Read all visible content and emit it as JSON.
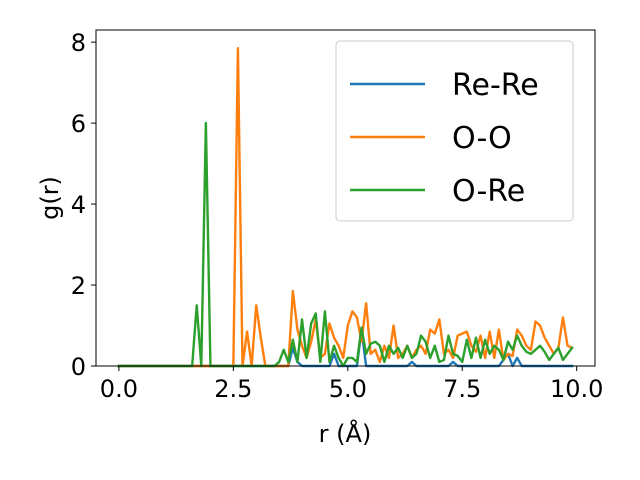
{
  "chart_data": {
    "type": "line",
    "title": "",
    "xlabel": "r (Å)",
    "ylabel": "g(r)",
    "xlim": [
      -0.5,
      10.4
    ],
    "ylim": [
      0,
      8.3
    ],
    "xticks": [
      0.0,
      2.5,
      5.0,
      7.5,
      10.0
    ],
    "xtick_labels": [
      "0.0",
      "2.5",
      "5.0",
      "7.5",
      "10.0"
    ],
    "yticks": [
      0,
      2,
      4,
      6,
      8
    ],
    "ytick_labels": [
      "0",
      "2",
      "4",
      "6",
      "8"
    ],
    "grid": false,
    "legend_position": "upper right",
    "series": [
      {
        "name": "Re-Re",
        "color": "#1f77b4",
        "x": [
          0.0,
          3.7,
          3.8,
          3.9,
          4.0,
          4.6,
          4.7,
          4.8,
          5.2,
          5.3,
          5.4,
          6.3,
          6.4,
          6.5,
          7.2,
          7.3,
          7.4,
          8.3,
          8.4,
          8.5,
          8.6,
          8.7,
          8.8,
          9.9
        ],
        "y": [
          0.0,
          0.0,
          0.45,
          0.1,
          0.0,
          0.0,
          0.3,
          0.0,
          0.0,
          0.9,
          0.0,
          0.0,
          0.1,
          0.0,
          0.0,
          0.1,
          0.0,
          0.0,
          0.15,
          0.3,
          0.0,
          0.2,
          0.0,
          0.0
        ]
      },
      {
        "name": "O-O",
        "color": "#ff7f0e",
        "x": [
          0.0,
          2.5,
          2.6,
          2.7,
          2.8,
          2.9,
          3.0,
          3.1,
          3.2,
          3.3,
          3.4,
          3.5,
          3.6,
          3.7,
          3.8,
          3.9,
          4.0,
          4.1,
          4.2,
          4.3,
          4.4,
          4.5,
          4.6,
          4.7,
          4.8,
          4.9,
          5.0,
          5.1,
          5.2,
          5.3,
          5.4,
          5.5,
          5.6,
          5.7,
          5.8,
          5.9,
          6.0,
          6.1,
          6.2,
          6.3,
          6.4,
          6.5,
          6.6,
          6.7,
          6.8,
          6.9,
          7.0,
          7.1,
          7.2,
          7.3,
          7.4,
          7.5,
          7.6,
          7.7,
          7.8,
          7.9,
          8.0,
          8.1,
          8.2,
          8.3,
          8.4,
          8.5,
          8.6,
          8.7,
          8.8,
          8.9,
          9.0,
          9.1,
          9.2,
          9.3,
          9.4,
          9.5,
          9.6,
          9.7,
          9.8,
          9.9
        ],
        "y": [
          0.0,
          0.0,
          7.85,
          0.0,
          0.85,
          0.0,
          1.5,
          0.7,
          0.0,
          0.0,
          0.0,
          0.0,
          0.0,
          0.0,
          1.85,
          0.9,
          0.5,
          0.2,
          0.6,
          1.15,
          0.2,
          0.3,
          1.05,
          0.7,
          0.5,
          0.2,
          1.0,
          1.35,
          1.2,
          0.6,
          1.55,
          0.3,
          0.4,
          0.1,
          0.5,
          0.2,
          1.0,
          0.2,
          0.3,
          0.5,
          0.2,
          0.4,
          0.5,
          0.3,
          0.9,
          0.8,
          1.15,
          0.3,
          0.4,
          0.2,
          0.75,
          0.8,
          0.85,
          0.5,
          0.35,
          0.75,
          0.2,
          0.85,
          0.2,
          0.9,
          0.15,
          0.3,
          0.25,
          0.9,
          0.75,
          0.5,
          0.4,
          1.1,
          1.0,
          0.7,
          0.5,
          0.3,
          0.45,
          1.2,
          0.5,
          0.45
        ]
      },
      {
        "name": "O-Re",
        "color": "#2ca02c",
        "x": [
          0.0,
          1.6,
          1.7,
          1.8,
          1.9,
          2.0,
          3.3,
          3.4,
          3.5,
          3.6,
          3.7,
          3.8,
          3.9,
          4.0,
          4.1,
          4.2,
          4.3,
          4.4,
          4.5,
          4.6,
          4.7,
          4.8,
          4.9,
          5.0,
          5.1,
          5.2,
          5.3,
          5.4,
          5.5,
          5.6,
          5.7,
          5.8,
          5.9,
          6.0,
          6.1,
          6.2,
          6.3,
          6.4,
          6.5,
          6.6,
          6.7,
          6.8,
          6.9,
          7.0,
          7.1,
          7.2,
          7.3,
          7.4,
          7.5,
          7.6,
          7.7,
          7.8,
          7.9,
          8.0,
          8.1,
          8.2,
          8.3,
          8.4,
          8.5,
          8.6,
          8.7,
          8.8,
          8.9,
          9.0,
          9.1,
          9.2,
          9.3,
          9.4,
          9.5,
          9.6,
          9.7,
          9.8,
          9.9
        ],
        "y": [
          0.0,
          0.0,
          1.5,
          0.0,
          6.0,
          0.0,
          0.0,
          0.0,
          0.1,
          0.4,
          0.1,
          0.65,
          0.1,
          1.15,
          0.2,
          1.05,
          1.3,
          0.1,
          1.35,
          0.1,
          0.5,
          0.2,
          0.0,
          0.2,
          0.2,
          0.1,
          0.95,
          0.3,
          0.55,
          0.6,
          0.5,
          0.1,
          0.5,
          0.3,
          0.45,
          0.2,
          0.5,
          0.2,
          0.3,
          0.75,
          0.6,
          0.2,
          0.5,
          0.1,
          0.15,
          0.75,
          0.3,
          0.25,
          0.1,
          0.65,
          0.2,
          0.7,
          0.2,
          0.65,
          0.3,
          0.5,
          0.4,
          0.15,
          0.6,
          0.4,
          0.75,
          0.5,
          0.35,
          0.3,
          0.4,
          0.5,
          0.35,
          0.15,
          0.3,
          0.45,
          0.15,
          0.3,
          0.45
        ]
      }
    ]
  }
}
